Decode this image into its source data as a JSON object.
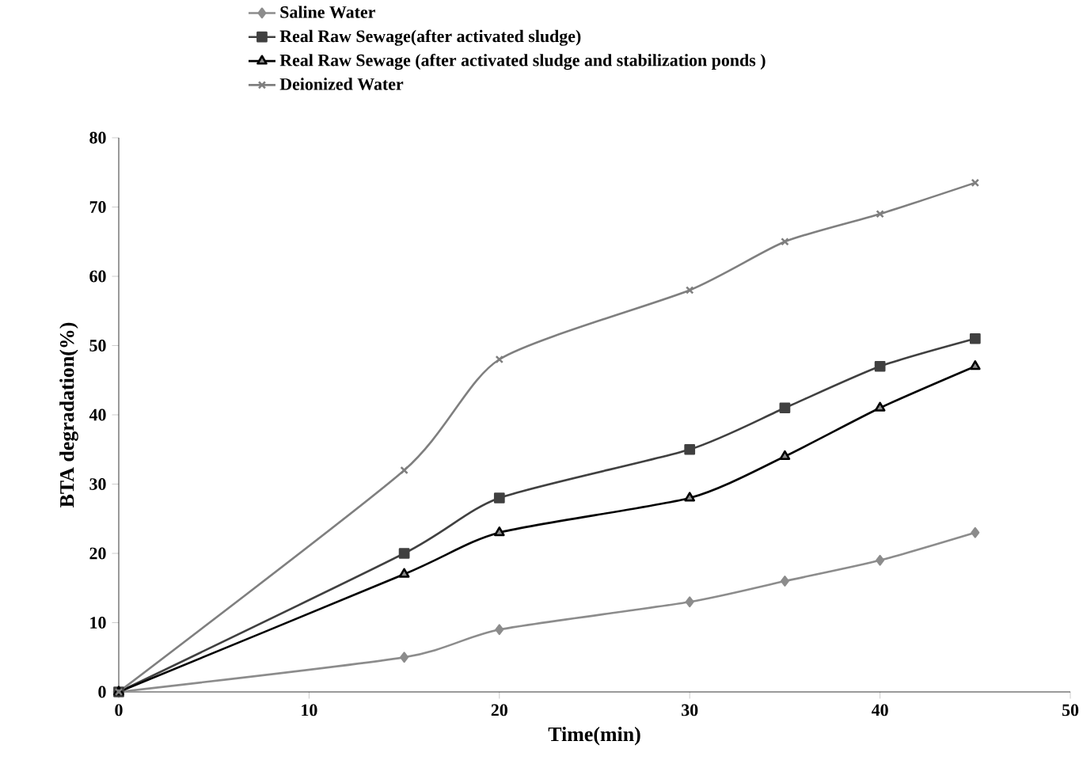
{
  "chart_data": {
    "type": "line",
    "xlabel": "Time(min)",
    "ylabel": "BTA degradation(%)",
    "xlim": [
      0,
      50
    ],
    "ylim": [
      0,
      80
    ],
    "xticks": [
      0,
      10,
      20,
      30,
      40,
      50
    ],
    "yticks": [
      0,
      10,
      20,
      30,
      40,
      50,
      60,
      70,
      80
    ],
    "grid": false,
    "legend": "top left",
    "x": [
      0,
      15,
      20,
      30,
      35,
      40,
      45
    ],
    "series": [
      {
        "name": "Saline Water",
        "color": "#8c8c8c",
        "marker": "diamond",
        "values": [
          0,
          5,
          9,
          13,
          16,
          19,
          23
        ]
      },
      {
        "name": "Real Raw Sewage(after activated sludge)",
        "color": "#404040",
        "marker": "square",
        "values": [
          0,
          20,
          28,
          35,
          41,
          47,
          51
        ]
      },
      {
        "name": "Real Raw Sewage (after activated sludge and stabilization ponds )",
        "color": "#000000",
        "marker": "triangle",
        "values": [
          0,
          17,
          23,
          28,
          34,
          41,
          47
        ]
      },
      {
        "name": "Deionized Water",
        "color": "#7f7f7f",
        "marker": "cross",
        "values": [
          0,
          32,
          48,
          58,
          65,
          69,
          73.5
        ]
      }
    ]
  }
}
